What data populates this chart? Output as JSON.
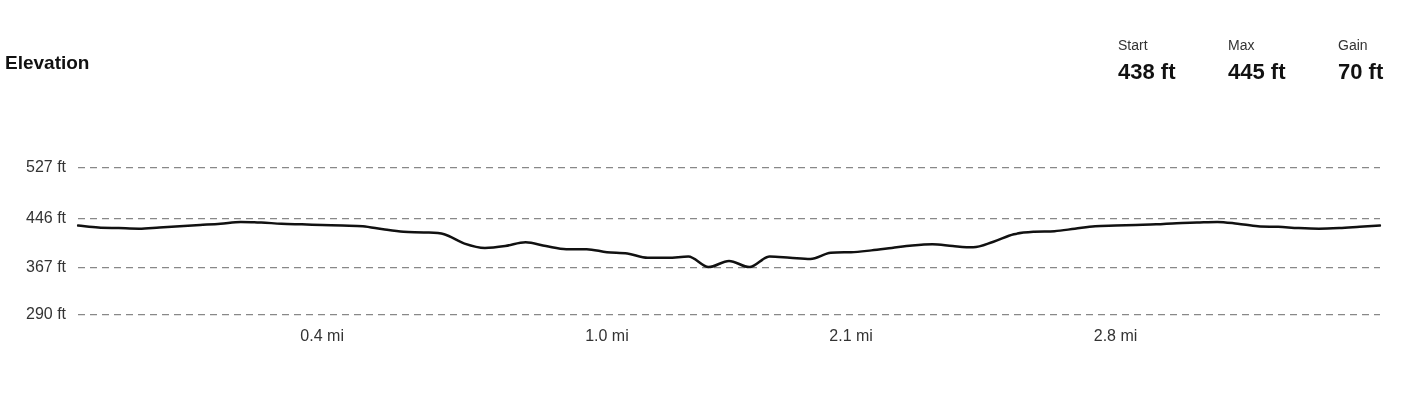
{
  "chart_data": {
    "type": "line",
    "title": "Elevation",
    "annotations": [
      "Start",
      "438 ft",
      "Max",
      "445 ft",
      "Gain",
      "70 ft"
    ],
    "categories": [
      null,
      null,
      null,
      null,
      null,
      null,
      null,
      null,
      null,
      null,
      null,
      null,
      "0.4 mi",
      null,
      null,
      null,
      null,
      null,
      null,
      null,
      null,
      null,
      null,
      null,
      null,
      null,
      "1.0 mi",
      null,
      null,
      null,
      null,
      null,
      null,
      null,
      null,
      null,
      null,
      null,
      "2.1 mi",
      null,
      null,
      null,
      null,
      null,
      null,
      null,
      null,
      null,
      null,
      null,
      null,
      "2.8 mi",
      null,
      null,
      null,
      null,
      null,
      null,
      null,
      null,
      null,
      null,
      null,
      null,
      null
    ],
    "series": [
      {
        "color": "#111111",
        "values": [
          434,
          431,
          430,
          429,
          431,
          433,
          435,
          437,
          440,
          439,
          437,
          436,
          435,
          434,
          433,
          428,
          424,
          423,
          420,
          405,
          398,
          401,
          407,
          401,
          396,
          396,
          391,
          389,
          382,
          382,
          384,
          367,
          377,
          367,
          384,
          382,
          380,
          390,
          391,
          394,
          398,
          402,
          404,
          401,
          399,
          408,
          420,
          424,
          425,
          429,
          433,
          434,
          435,
          436,
          438,
          439,
          440,
          437,
          433,
          432,
          430,
          429,
          430,
          432,
          434
        ]
      }
    ],
    "ylim": [
      290,
      527
    ],
    "yticks": [
      {
        "value": 290,
        "label": "290 ft"
      },
      {
        "value": 367,
        "label": "367 ft"
      },
      {
        "value": 446,
        "label": "446 ft"
      },
      {
        "value": 527,
        "label": "527 ft"
      }
    ],
    "grid": "y",
    "legend": false,
    "marker": "none",
    "line_style": "solid"
  }
}
